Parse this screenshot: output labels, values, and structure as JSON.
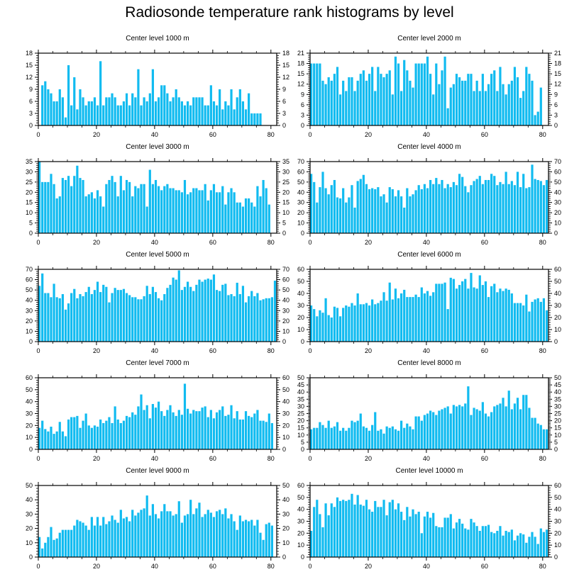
{
  "title": "Radiosonde temperature rank histograms by level",
  "bar_color": "#11bbf0",
  "chart_data": [
    {
      "type": "bar",
      "title": "Center level 1000 m",
      "xlim": [
        0,
        82
      ],
      "xticks": [
        0,
        20,
        40,
        60,
        80
      ],
      "ylim": [
        0,
        18
      ],
      "yticks": [
        0,
        3,
        6,
        9,
        12,
        15,
        18
      ],
      "values": [
        10,
        11,
        9,
        8,
        6,
        6,
        9,
        7,
        2,
        15,
        5,
        12,
        4,
        9,
        7,
        5,
        6,
        6,
        7,
        5,
        16,
        5,
        7,
        7,
        8,
        7,
        5,
        5,
        6,
        8,
        5,
        8,
        7,
        14,
        5,
        7,
        6,
        8,
        14,
        6,
        7,
        10,
        10,
        8,
        6,
        7,
        9,
        7,
        6,
        5,
        6,
        5,
        7,
        7,
        7,
        7,
        5,
        5,
        10,
        6,
        5,
        9,
        4,
        6,
        5,
        9,
        4,
        7,
        9,
        6,
        4,
        8,
        3,
        3,
        3,
        3
      ],
      "x_offset": 1
    },
    {
      "type": "bar",
      "title": "Center level 2000 m",
      "xlim": [
        0,
        82
      ],
      "xticks": [
        0,
        20,
        40,
        60,
        80
      ],
      "ylim": [
        0,
        21
      ],
      "yticks": [
        0,
        3,
        6,
        9,
        12,
        15,
        18,
        21
      ],
      "values": [
        18,
        18,
        18,
        18,
        13,
        12,
        14,
        13,
        15,
        17,
        9,
        13,
        10,
        14,
        14,
        10,
        13,
        15,
        16,
        13,
        15,
        17,
        10,
        17,
        15,
        14,
        15,
        16,
        9,
        20,
        18,
        10,
        19,
        16,
        13,
        11,
        18,
        18,
        18,
        18,
        20,
        15,
        9,
        18,
        12,
        16,
        20,
        5,
        11,
        12,
        15,
        14,
        13,
        13,
        15,
        15,
        10,
        13,
        10,
        15,
        10,
        12,
        15,
        16,
        10,
        17,
        12,
        9,
        12,
        13,
        17,
        14,
        8,
        10,
        17,
        15,
        13,
        3,
        4,
        11
      ]
    },
    {
      "type": "bar",
      "title": "Center level 3000 m",
      "xlim": [
        0,
        82
      ],
      "xticks": [
        0,
        20,
        40,
        60,
        80
      ],
      "ylim": [
        0,
        35
      ],
      "yticks": [
        0,
        5,
        10,
        15,
        20,
        25,
        30,
        35
      ],
      "values": [
        35,
        25,
        25,
        25,
        29,
        24,
        17,
        18,
        27,
        26,
        28,
        23,
        28,
        33,
        27,
        26,
        18,
        19,
        20,
        17,
        21,
        18,
        13,
        24,
        26,
        28,
        25,
        18,
        28,
        21,
        26,
        25,
        18,
        23,
        22,
        24,
        24,
        13,
        31,
        24,
        26,
        23,
        21,
        23,
        24,
        22,
        22,
        21,
        21,
        20,
        26,
        19,
        20,
        22,
        22,
        21,
        21,
        24,
        16,
        21,
        24,
        20,
        20,
        23,
        14,
        20,
        22,
        20,
        15,
        15,
        13,
        17,
        17,
        15,
        13,
        23,
        18,
        26,
        22,
        14
      ]
    },
    {
      "type": "bar",
      "title": "Center level 4000 m",
      "xlim": [
        0,
        82
      ],
      "xticks": [
        0,
        20,
        40,
        60,
        80
      ],
      "ylim": [
        0,
        70
      ],
      "yticks": [
        0,
        10,
        20,
        30,
        40,
        50,
        60,
        70
      ],
      "values": [
        58,
        50,
        30,
        45,
        60,
        44,
        38,
        47,
        52,
        35,
        34,
        44,
        30,
        35,
        47,
        25,
        51,
        53,
        57,
        48,
        43,
        44,
        43,
        45,
        36,
        38,
        30,
        45,
        43,
        36,
        42,
        36,
        25,
        44,
        36,
        38,
        42,
        47,
        43,
        48,
        44,
        52,
        48,
        54,
        48,
        52,
        44,
        48,
        45,
        50,
        47,
        58,
        55,
        46,
        40,
        47,
        51,
        53,
        56,
        48,
        52,
        52,
        58,
        56,
        47,
        50,
        48,
        60,
        48,
        51,
        47,
        60,
        45,
        58,
        44,
        45,
        67,
        53,
        52,
        51,
        47,
        52
      ]
    },
    {
      "type": "bar",
      "title": "Center level 5000 m",
      "xlim": [
        0,
        82
      ],
      "xticks": [
        0,
        20,
        40,
        60,
        80
      ],
      "ylim": [
        0,
        70
      ],
      "yticks": [
        0,
        10,
        20,
        30,
        40,
        50,
        60,
        70
      ],
      "values": [
        54,
        66,
        47,
        47,
        43,
        56,
        43,
        42,
        46,
        31,
        37,
        47,
        51,
        42,
        46,
        44,
        48,
        53,
        46,
        50,
        58,
        48,
        55,
        53,
        38,
        47,
        52,
        50,
        50,
        51,
        47,
        45,
        43,
        43,
        41,
        41,
        44,
        54,
        46,
        53,
        48,
        42,
        40,
        46,
        52,
        55,
        62,
        60,
        69,
        50,
        53,
        58,
        53,
        49,
        55,
        60,
        58,
        60,
        61,
        60,
        65,
        50,
        49,
        55,
        56,
        45,
        46,
        44,
        57,
        46,
        54,
        38,
        44,
        49,
        44,
        47,
        40,
        41,
        42,
        42,
        43,
        59
      ]
    },
    {
      "type": "bar",
      "title": "Center level 6000 m",
      "xlim": [
        0,
        82
      ],
      "xticks": [
        0,
        20,
        40,
        60,
        80
      ],
      "ylim": [
        0,
        60
      ],
      "yticks": [
        0,
        10,
        20,
        30,
        40,
        50,
        60
      ],
      "values": [
        30,
        27,
        21,
        26,
        24,
        36,
        22,
        20,
        29,
        28,
        21,
        28,
        30,
        29,
        32,
        30,
        40,
        31,
        31,
        32,
        30,
        35,
        31,
        32,
        34,
        41,
        34,
        49,
        35,
        44,
        36,
        40,
        43,
        37,
        37,
        37,
        39,
        37,
        45,
        40,
        42,
        38,
        41,
        48,
        48,
        48,
        49,
        27,
        53,
        52,
        44,
        47,
        50,
        52,
        44,
        57,
        45,
        44,
        55,
        47,
        50,
        37,
        46,
        48,
        41,
        44,
        42,
        44,
        43,
        40,
        32,
        32,
        32,
        30,
        39,
        25,
        33,
        35,
        36,
        33,
        36,
        26
      ]
    },
    {
      "type": "bar",
      "title": "Center level 7000 m",
      "xlim": [
        0,
        82
      ],
      "xticks": [
        0,
        20,
        40,
        60,
        80
      ],
      "ylim": [
        0,
        60
      ],
      "yticks": [
        0,
        10,
        20,
        30,
        40,
        50,
        60
      ],
      "values": [
        18,
        24,
        17,
        15,
        19,
        13,
        15,
        23,
        15,
        11,
        25,
        27,
        27,
        28,
        18,
        24,
        30,
        20,
        18,
        20,
        19,
        25,
        22,
        24,
        27,
        22,
        36,
        25,
        22,
        24,
        28,
        27,
        31,
        29,
        36,
        46,
        33,
        37,
        26,
        38,
        35,
        40,
        32,
        28,
        33,
        37,
        31,
        28,
        33,
        29,
        55,
        34,
        30,
        33,
        32,
        32,
        35,
        36,
        27,
        33,
        26,
        31,
        33,
        36,
        28,
        29,
        37,
        26,
        32,
        25,
        25,
        32,
        28,
        27,
        30,
        33,
        24,
        24,
        23,
        30,
        22
      ]
    },
    {
      "type": "bar",
      "title": "Center level 8000 m",
      "xlim": [
        0,
        82
      ],
      "xticks": [
        0,
        20,
        40,
        60,
        80
      ],
      "ylim": [
        0,
        50
      ],
      "yticks": [
        0,
        5,
        10,
        15,
        20,
        25,
        30,
        35,
        40,
        45,
        50
      ],
      "values": [
        14,
        15,
        15,
        19,
        17,
        15,
        20,
        15,
        16,
        19,
        13,
        15,
        13,
        15,
        20,
        19,
        20,
        25,
        16,
        15,
        13,
        17,
        26,
        13,
        14,
        11,
        16,
        15,
        16,
        14,
        13,
        20,
        15,
        18,
        16,
        14,
        23,
        23,
        20,
        24,
        25,
        27,
        26,
        24,
        27,
        28,
        29,
        30,
        25,
        31,
        30,
        31,
        30,
        32,
        44,
        24,
        29,
        28,
        27,
        33,
        25,
        23,
        26,
        30,
        31,
        32,
        36,
        30,
        41,
        28,
        32,
        36,
        28,
        38,
        38,
        29,
        22,
        22,
        18,
        17,
        14,
        14
      ]
    },
    {
      "type": "bar",
      "title": "Center level 9000 m",
      "xlim": [
        0,
        82
      ],
      "xticks": [
        0,
        20,
        40,
        60,
        80
      ],
      "ylim": [
        0,
        50
      ],
      "yticks": [
        0,
        10,
        20,
        30,
        40,
        50
      ],
      "values": [
        14,
        6,
        10,
        14,
        21,
        12,
        13,
        17,
        19,
        19,
        19,
        19,
        22,
        26,
        25,
        24,
        22,
        19,
        28,
        22,
        28,
        22,
        28,
        23,
        25,
        29,
        26,
        24,
        33,
        27,
        28,
        25,
        33,
        29,
        31,
        33,
        34,
        43,
        29,
        37,
        30,
        27,
        32,
        37,
        32,
        32,
        29,
        30,
        39,
        24,
        29,
        30,
        40,
        30,
        34,
        38,
        28,
        30,
        33,
        31,
        28,
        32,
        33,
        30,
        34,
        27,
        30,
        25,
        19,
        29,
        25,
        26,
        25,
        26,
        22,
        26,
        17,
        12,
        23,
        24,
        22
      ]
    },
    {
      "type": "bar",
      "title": "Center level 10000 m",
      "xlim": [
        0,
        82
      ],
      "xticks": [
        0,
        20,
        40,
        60,
        80
      ],
      "ylim": [
        0,
        60
      ],
      "yticks": [
        0,
        10,
        20,
        30,
        40,
        50,
        60
      ],
      "values": [
        22,
        42,
        48,
        36,
        25,
        45,
        35,
        45,
        42,
        50,
        47,
        48,
        47,
        48,
        53,
        44,
        52,
        44,
        43,
        48,
        40,
        38,
        47,
        42,
        42,
        48,
        35,
        46,
        48,
        40,
        45,
        38,
        31,
        42,
        34,
        40,
        36,
        38,
        20,
        34,
        38,
        33,
        37,
        26,
        25,
        25,
        33,
        33,
        36,
        24,
        29,
        32,
        28,
        24,
        23,
        32,
        29,
        26,
        22,
        26,
        26,
        27,
        21,
        20,
        22,
        26,
        18,
        22,
        21,
        23,
        14,
        18,
        20,
        19,
        12,
        17,
        21,
        17,
        11,
        24,
        21,
        23
      ]
    }
  ]
}
